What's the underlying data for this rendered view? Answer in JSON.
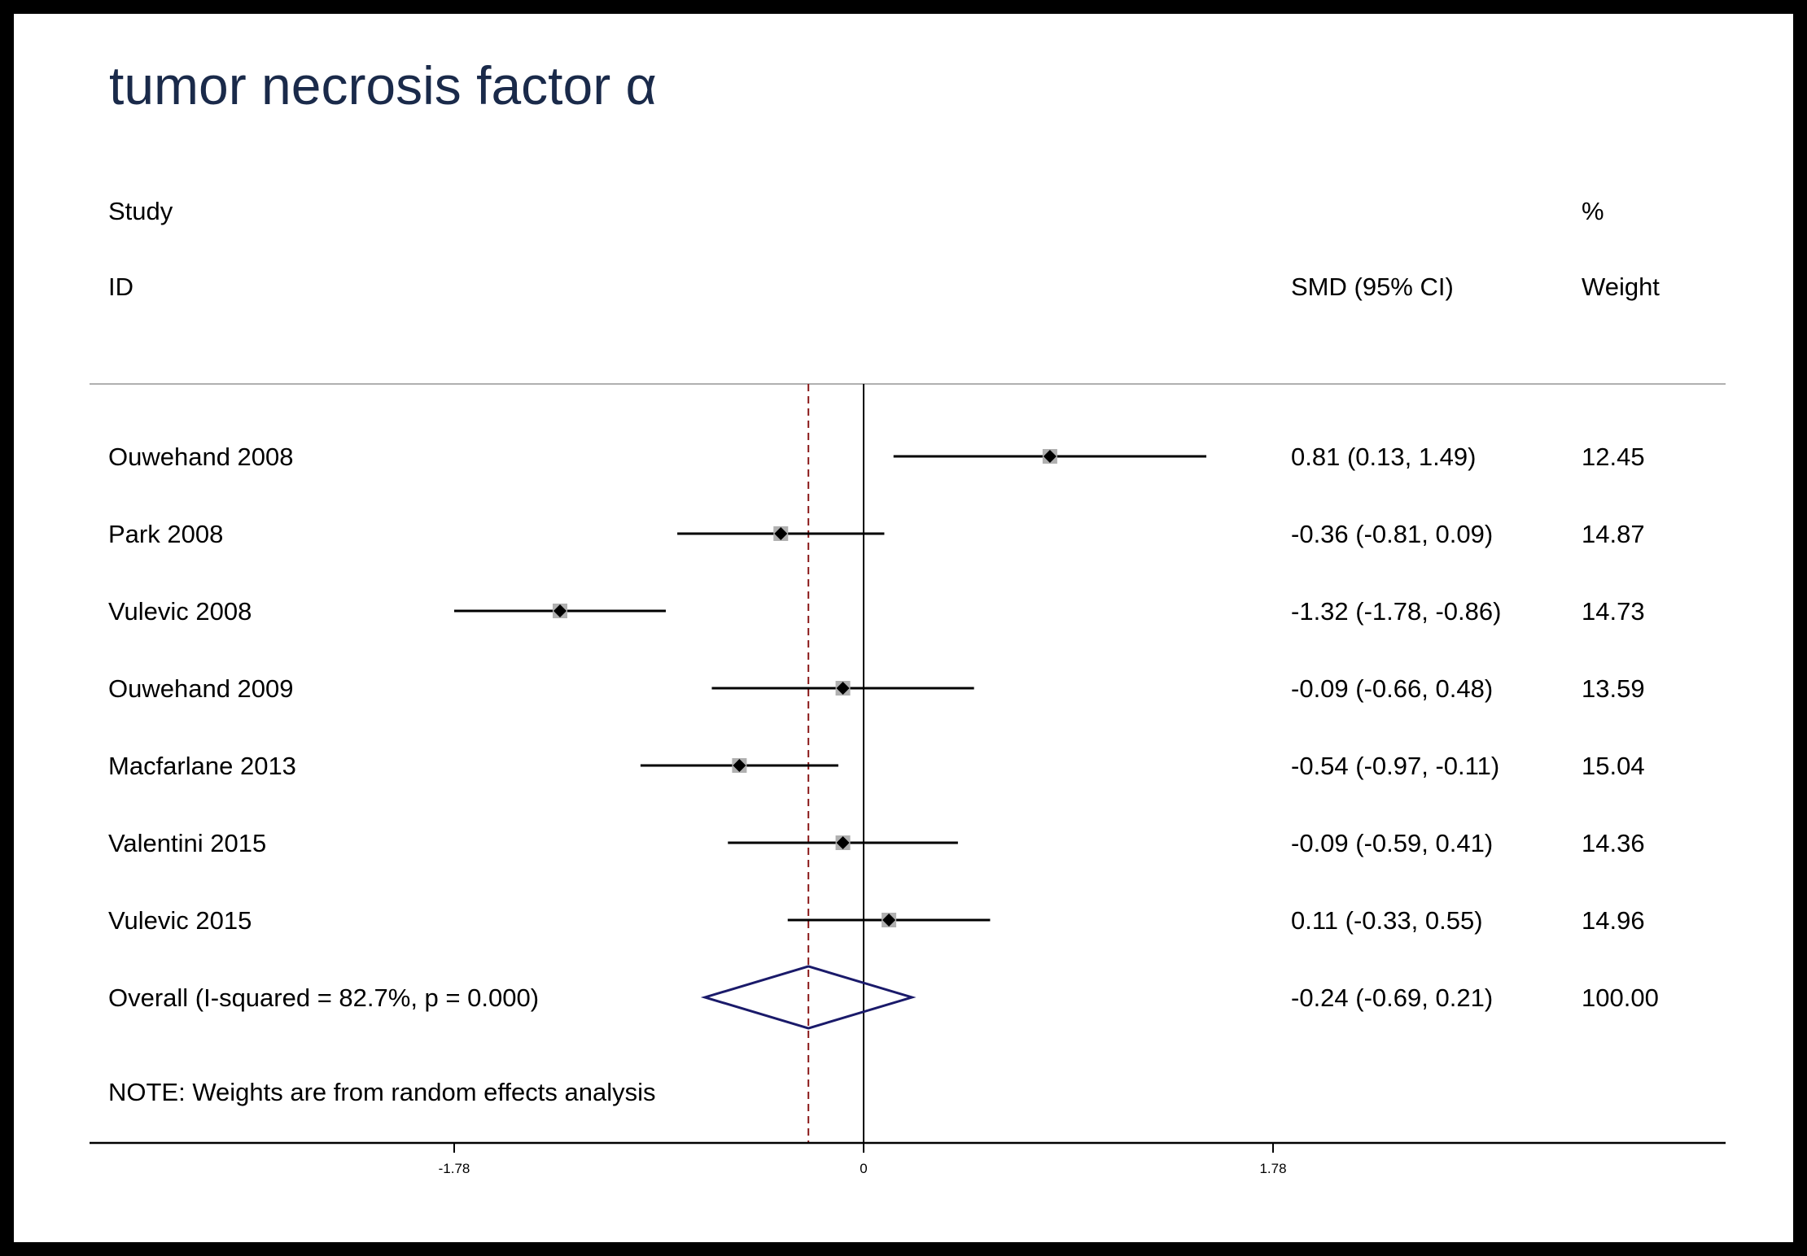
{
  "chart_data": {
    "type": "forest",
    "title": "tumor necrosis factor α",
    "headers": {
      "study_line1": "Study",
      "study_line2": "ID",
      "effect": "SMD (95% CI)",
      "weight_line1": "%",
      "weight_line2": "Weight"
    },
    "studies": [
      {
        "id": "Ouwehand 2008",
        "smd": 0.81,
        "lower": 0.13,
        "upper": 1.49,
        "ci_text": "0.81 (0.13, 1.49)",
        "weight": "12.45"
      },
      {
        "id": "Park 2008",
        "smd": -0.36,
        "lower": -0.81,
        "upper": 0.09,
        "ci_text": "-0.36 (-0.81, 0.09)",
        "weight": "14.87"
      },
      {
        "id": "Vulevic 2008",
        "smd": -1.32,
        "lower": -1.78,
        "upper": -0.86,
        "ci_text": "-1.32 (-1.78, -0.86)",
        "weight": "14.73"
      },
      {
        "id": "Ouwehand 2009",
        "smd": -0.09,
        "lower": -0.66,
        "upper": 0.48,
        "ci_text": "-0.09 (-0.66, 0.48)",
        "weight": "13.59"
      },
      {
        "id": "Macfarlane 2013",
        "smd": -0.54,
        "lower": -0.97,
        "upper": -0.11,
        "ci_text": "-0.54 (-0.97, -0.11)",
        "weight": "15.04"
      },
      {
        "id": "Valentini 2015",
        "smd": -0.09,
        "lower": -0.59,
        "upper": 0.41,
        "ci_text": "-0.09 (-0.59, 0.41)",
        "weight": "14.36"
      },
      {
        "id": "Vulevic 2015",
        "smd": 0.11,
        "lower": -0.33,
        "upper": 0.55,
        "ci_text": "0.11 (-0.33, 0.55)",
        "weight": "14.96"
      }
    ],
    "overall": {
      "label": "Overall  (I-squared = 82.7%, p = 0.000)",
      "smd": -0.24,
      "lower": -0.69,
      "upper": 0.21,
      "ci_text": "-0.24 (-0.69, 0.21)",
      "weight": "100.00"
    },
    "note": "NOTE: Weights are from random effects analysis",
    "xaxis": {
      "ticks": [
        -1.78,
        0,
        1.78
      ],
      "tick_labels": [
        "-1.78",
        "0",
        "1.78"
      ],
      "range": [
        -3.38,
        3.76
      ]
    },
    "null_line": 0,
    "overall_line": -0.24,
    "colors": {
      "title": "#1a2a4a",
      "diamond": "#1a1a6a",
      "overall_line": "#8b1a1a",
      "box": "#b0b0b0",
      "separator": "#b0b0b0"
    }
  }
}
